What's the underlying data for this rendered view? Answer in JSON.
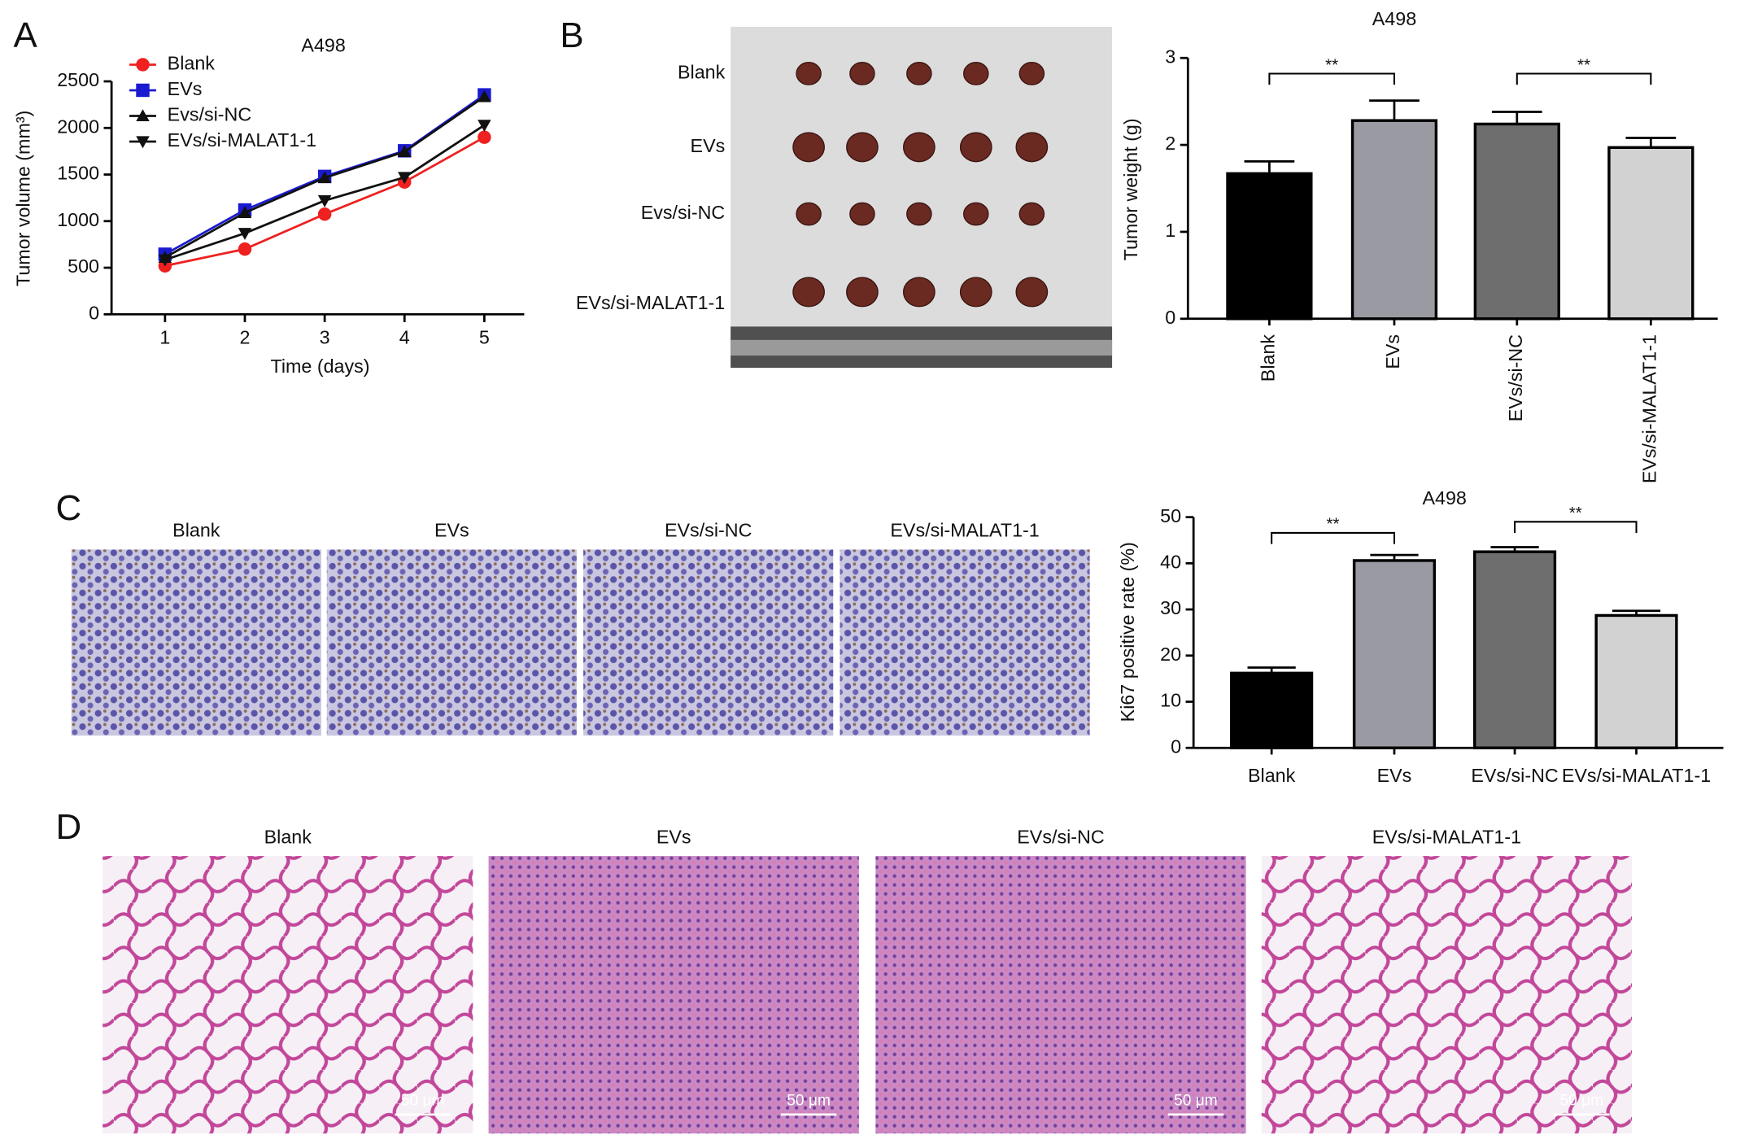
{
  "panel_labels": [
    "A",
    "B",
    "C",
    "D"
  ],
  "panel_b_photo": {
    "row_labels": [
      "Blank",
      "EVs",
      "Evs/si-NC",
      "EVs/si-MALAT1-1"
    ]
  },
  "panel_c_images": {
    "labels": [
      "Blank",
      "EVs",
      "EVs/si-NC",
      "EVs/si-MALAT1-1"
    ]
  },
  "panel_d_images": {
    "labels": [
      "Blank",
      "EVs",
      "EVs/si-NC",
      "EVs/si-MALAT1-1"
    ],
    "scale_bar": "50 μm"
  },
  "chart_data": [
    {
      "type": "line",
      "title": "A498",
      "xlabel": "Time (days)",
      "ylabel": "Tumor volume (mm³)",
      "x": [
        1,
        2,
        3,
        4,
        5
      ],
      "xlim": [
        0.33,
        5.5
      ],
      "xticks": [
        1,
        2,
        3,
        4,
        5
      ],
      "ylim": [
        0,
        2500
      ],
      "yticks": [
        0,
        500,
        1000,
        1500,
        2000,
        2500
      ],
      "legend": "upper left",
      "series": [
        {
          "name": "Blank",
          "color": "#ee2020",
          "marker": "circle",
          "values": [
            520,
            700,
            1075,
            1420,
            1900
          ]
        },
        {
          "name": "EVs",
          "color": "#1a1ad0",
          "marker": "square",
          "values": [
            645,
            1120,
            1480,
            1755,
            2355
          ]
        },
        {
          "name": "Evs/si-NC",
          "color": "#111111",
          "marker": "triangle-up",
          "values": [
            610,
            1090,
            1465,
            1745,
            2335
          ]
        },
        {
          "name": "EVs/si-MALAT1-1",
          "color": "#111111",
          "marker": "triangle-down",
          "values": [
            585,
            870,
            1220,
            1470,
            2030
          ]
        }
      ]
    },
    {
      "type": "bar",
      "title": "A498",
      "ylabel": "Tumor weight (g)",
      "categories": [
        "Blank",
        "EVs",
        "EVs/si-NC",
        "EVs/si-MALAT1-1"
      ],
      "values": [
        1.67,
        2.28,
        2.24,
        1.97
      ],
      "errors": [
        0.14,
        0.23,
        0.14,
        0.11
      ],
      "colors": [
        "#000000",
        "#9a9aa2",
        "#6e6e6e",
        "#d2d2d2"
      ],
      "ylim": [
        0,
        3
      ],
      "yticks": [
        0,
        1,
        2,
        3
      ],
      "category_labels_rotated": true,
      "significance": [
        {
          "from": 0,
          "to": 1,
          "y": 2.82,
          "label": "**"
        },
        {
          "from": 2,
          "to": 3,
          "y": 2.82,
          "label": "**"
        }
      ]
    },
    {
      "type": "bar",
      "title": "A498",
      "ylabel": "Ki67 positive rate (%)",
      "categories": [
        "Blank",
        "EVs",
        "EVs/si-NC",
        "EVs/si-MALAT1-1"
      ],
      "values": [
        16.2,
        40.6,
        42.5,
        28.7
      ],
      "errors": [
        1.2,
        1.2,
        1.0,
        1.0
      ],
      "colors": [
        "#000000",
        "#9a9aa2",
        "#6e6e6e",
        "#d2d2d2"
      ],
      "ylim": [
        0,
        50
      ],
      "yticks": [
        0,
        10,
        20,
        30,
        40,
        50
      ],
      "category_labels_rotated": false,
      "significance": [
        {
          "from": 0,
          "to": 1,
          "y": 46.6,
          "label": "**"
        },
        {
          "from": 2,
          "to": 3,
          "y": 49,
          "label": "**"
        }
      ]
    }
  ]
}
